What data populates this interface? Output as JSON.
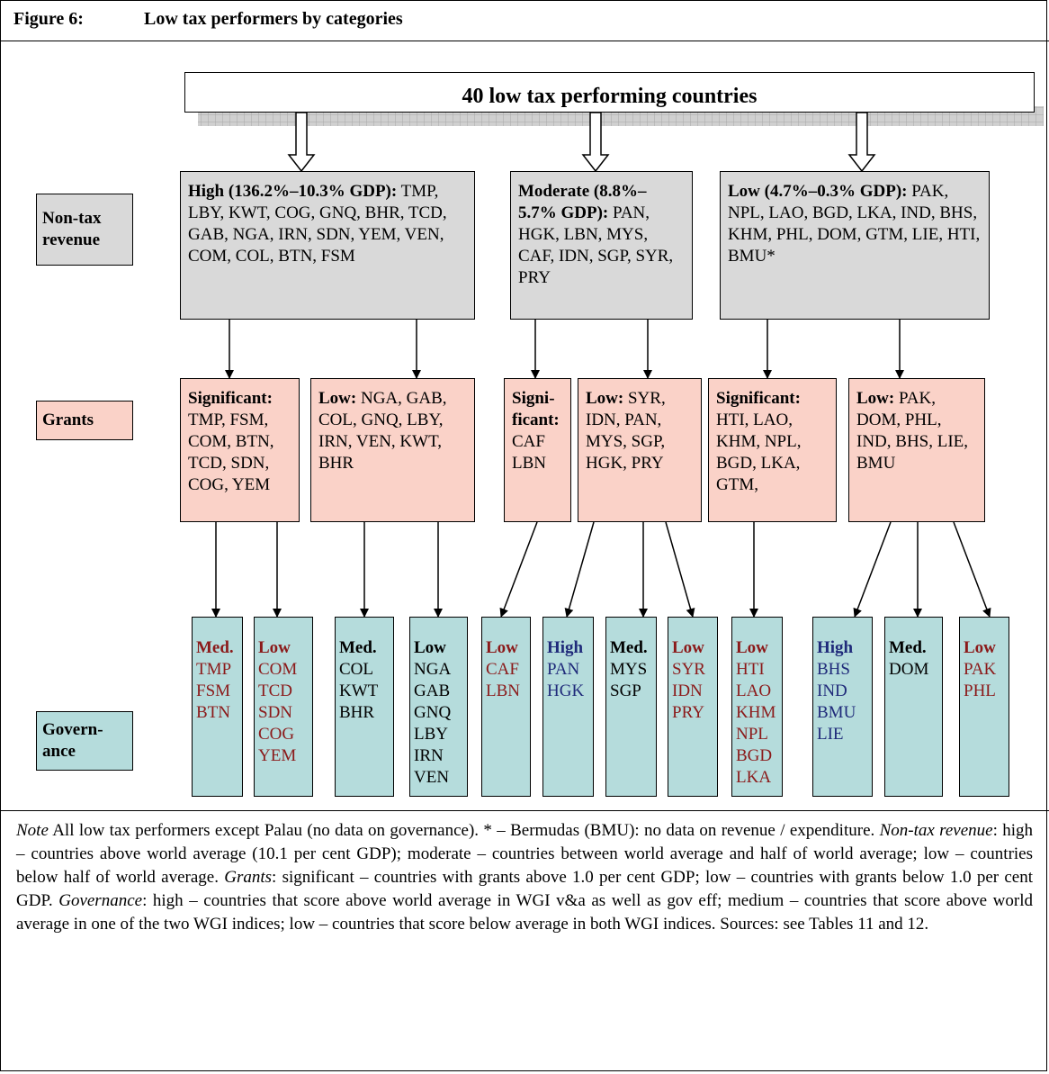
{
  "header": {
    "figure": "Figure 6:",
    "title": "Low tax performers by categories"
  },
  "top_box": "40 low tax performing countries",
  "row_labels": {
    "non_tax": "Non-tax revenue",
    "grants": "Grants",
    "governance": "Govern-ance"
  },
  "non_tax": [
    {
      "heading": "High (136.2%–10.3% GDP):",
      "text": "TMP, LBY, KWT, COG, GNQ, BHR, TCD, GAB, NGA, IRN, SDN, YEM, VEN, COM, COL, BTN, FSM"
    },
    {
      "heading": "Moderate (8.8%–5.7% GDP):",
      "text": "PAN, HGK, LBN, MYS, CAF, IDN, SGP, SYR, PRY"
    },
    {
      "heading": "Low (4.7%–0.3% GDP):",
      "text": "PAK, NPL, LAO, BGD, LKA, IND, BHS, KHM, PHL, DOM, GTM, LIE, HTI, BMU*"
    }
  ],
  "grants": [
    {
      "heading": "Significant:",
      "text": "TMP, FSM, COM, BTN, TCD, SDN, COG, YEM"
    },
    {
      "heading": "Low:",
      "text": "NGA, GAB, COL, GNQ, LBY, IRN, VEN, KWT, BHR"
    },
    {
      "heading": "Signi-ficant:",
      "text": "CAF LBN"
    },
    {
      "heading": "Low:",
      "text": "SYR, IDN, PAN, MYS, SGP, HGK, PRY"
    },
    {
      "heading": "Significant:",
      "text": "HTI, LAO, KHM, NPL, BGD, LKA, GTM,"
    },
    {
      "heading": "Low:",
      "text": "PAK, DOM, PHL, IND, BHS, LIE, BMU"
    }
  ],
  "governance": [
    {
      "heading": "Med.",
      "heading_color": "#8b1a1a",
      "item_color": "#8b1a1a",
      "items": [
        "TMP",
        "FSM",
        "BTN"
      ]
    },
    {
      "heading": "Low",
      "heading_color": "#8b1a1a",
      "item_color": "#8b1a1a",
      "items": [
        "COM",
        "TCD",
        "SDN",
        "COG",
        "YEM"
      ]
    },
    {
      "heading": "Med.",
      "heading_color": "#000000",
      "item_color": "#000000",
      "items": [
        "COL",
        "KWT",
        "BHR"
      ]
    },
    {
      "heading": "Low",
      "heading_color": "#000000",
      "item_color": "#000000",
      "items": [
        "NGA",
        "GAB",
        "GNQ",
        "LBY",
        "IRN",
        "VEN"
      ]
    },
    {
      "heading": "Low",
      "heading_color": "#8b1a1a",
      "item_color": "#8b1a1a",
      "items": [
        "CAF",
        "LBN"
      ]
    },
    {
      "heading": "High",
      "heading_color": "#1f2a7a",
      "item_color": "#1f2a7a",
      "items": [
        "PAN",
        "HGK"
      ]
    },
    {
      "heading": "Med.",
      "heading_color": "#000000",
      "item_color": "#000000",
      "items": [
        "MYS",
        "SGP"
      ]
    },
    {
      "heading": "Low",
      "heading_color": "#8b1a1a",
      "item_color": "#8b1a1a",
      "items": [
        "SYR",
        "IDN",
        "PRY"
      ]
    },
    {
      "heading": "Low",
      "heading_color": "#8b1a1a",
      "item_color": "#8b1a1a",
      "items": [
        "HTI",
        "LAO",
        "KHM",
        "NPL",
        "BGD",
        "LKA"
      ]
    },
    {
      "heading": "High",
      "heading_color": "#1f2a7a",
      "item_color": "#1f2a7a",
      "items": [
        "BHS",
        "IND",
        "BMU",
        "LIE"
      ]
    },
    {
      "heading": "Med.",
      "heading_color": "#000000",
      "item_color": "#000000",
      "items": [
        "DOM"
      ]
    },
    {
      "heading": "Low",
      "heading_color": "#8b1a1a",
      "item_color": "#8b1a1a",
      "items": [
        "PAK",
        "PHL"
      ]
    }
  ],
  "note": [
    {
      "text": "Note",
      "italic": true
    },
    {
      "text": " All low tax performers except Palau (no data on governance). * – Bermudas (BMU): no data on revenue / expenditure. ",
      "italic": false
    },
    {
      "text": "Non-tax revenue",
      "italic": true
    },
    {
      "text": ": high – countries above world average (10.1 per cent GDP); moderate – countries between world average and half of world average; low – countries below half of world average. ",
      "italic": false
    },
    {
      "text": "Grants",
      "italic": true
    },
    {
      "text": ": significant – countries with grants above 1.0 per cent GDP; low – countries with grants below 1.0 per cent GDP. ",
      "italic": false
    },
    {
      "text": "Governance",
      "italic": true
    },
    {
      "text": ": high – countries that score above world average in WGI v&a as well as gov eff; medium – countries that score above world average in one of the two WGI indices; low – countries that score below average in both WGI indices. Sources: see Tables 11 and 12.",
      "italic": false
    }
  ]
}
